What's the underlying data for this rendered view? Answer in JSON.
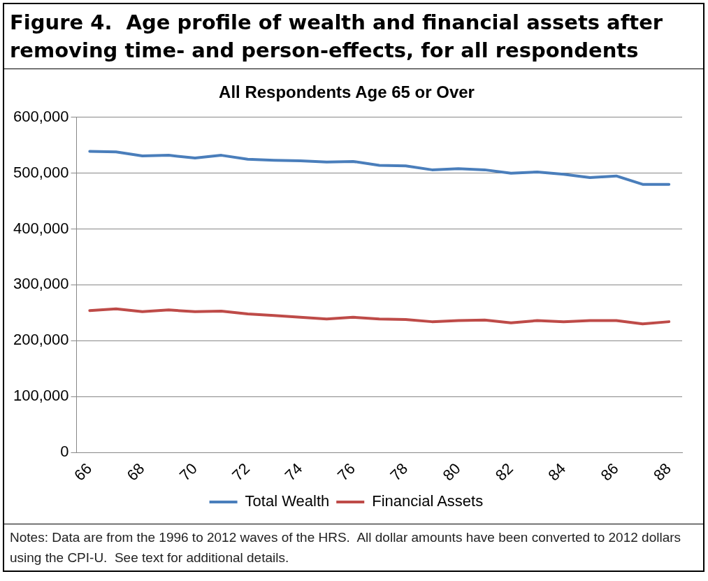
{
  "chart_data": {
    "type": "line",
    "title": "Figure 4.  Age profile of wealth and financial assets after removing time- and person-effects, for all respondents",
    "subtitle": "All Respondents Age 65 or Over",
    "categories": [
      "66",
      null,
      "68",
      null,
      "70",
      null,
      "72",
      null,
      "74",
      null,
      "76",
      null,
      "78",
      null,
      "80",
      null,
      "82",
      null,
      "84",
      null,
      "86",
      null,
      "88"
    ],
    "series": [
      {
        "name": "Total Wealth",
        "color": "#4a7ebb",
        "values": [
          539000,
          538000,
          531000,
          532000,
          527000,
          532000,
          525000,
          523000,
          522000,
          520000,
          521000,
          514000,
          513000,
          506000,
          508000,
          506000,
          500000,
          502000,
          498000,
          492000,
          495000,
          480000,
          480000
        ]
      },
      {
        "name": "Financial Assets",
        "color": "#be4b48",
        "values": [
          254000,
          257000,
          252000,
          255000,
          252000,
          253000,
          248000,
          245000,
          242000,
          239000,
          242000,
          239000,
          238000,
          234000,
          236000,
          237000,
          232000,
          236000,
          234000,
          236000,
          236000,
          230000,
          234000
        ]
      }
    ],
    "ylim": [
      0,
      600000
    ],
    "yticks": [
      0,
      {
        "value": 100000,
        "label": "100,000"
      },
      {
        "value": 200000,
        "label": "200,000"
      },
      {
        "value": 300000,
        "label": "300,000"
      },
      {
        "value": 400000,
        "label": "400,000"
      },
      {
        "value": 500000,
        "label": "500,000"
      },
      {
        "value": 600000,
        "label": "600,000"
      }
    ],
    "grid": "y",
    "legend": "bottom",
    "marker": "none",
    "line_style": "solid",
    "annotations": [
      "Notes: Data are from the 1996 to 2012 waves of the HRS.  All dollar amounts have been converted to 2012 dollars using the CPI-U.  See text for additional details."
    ]
  }
}
